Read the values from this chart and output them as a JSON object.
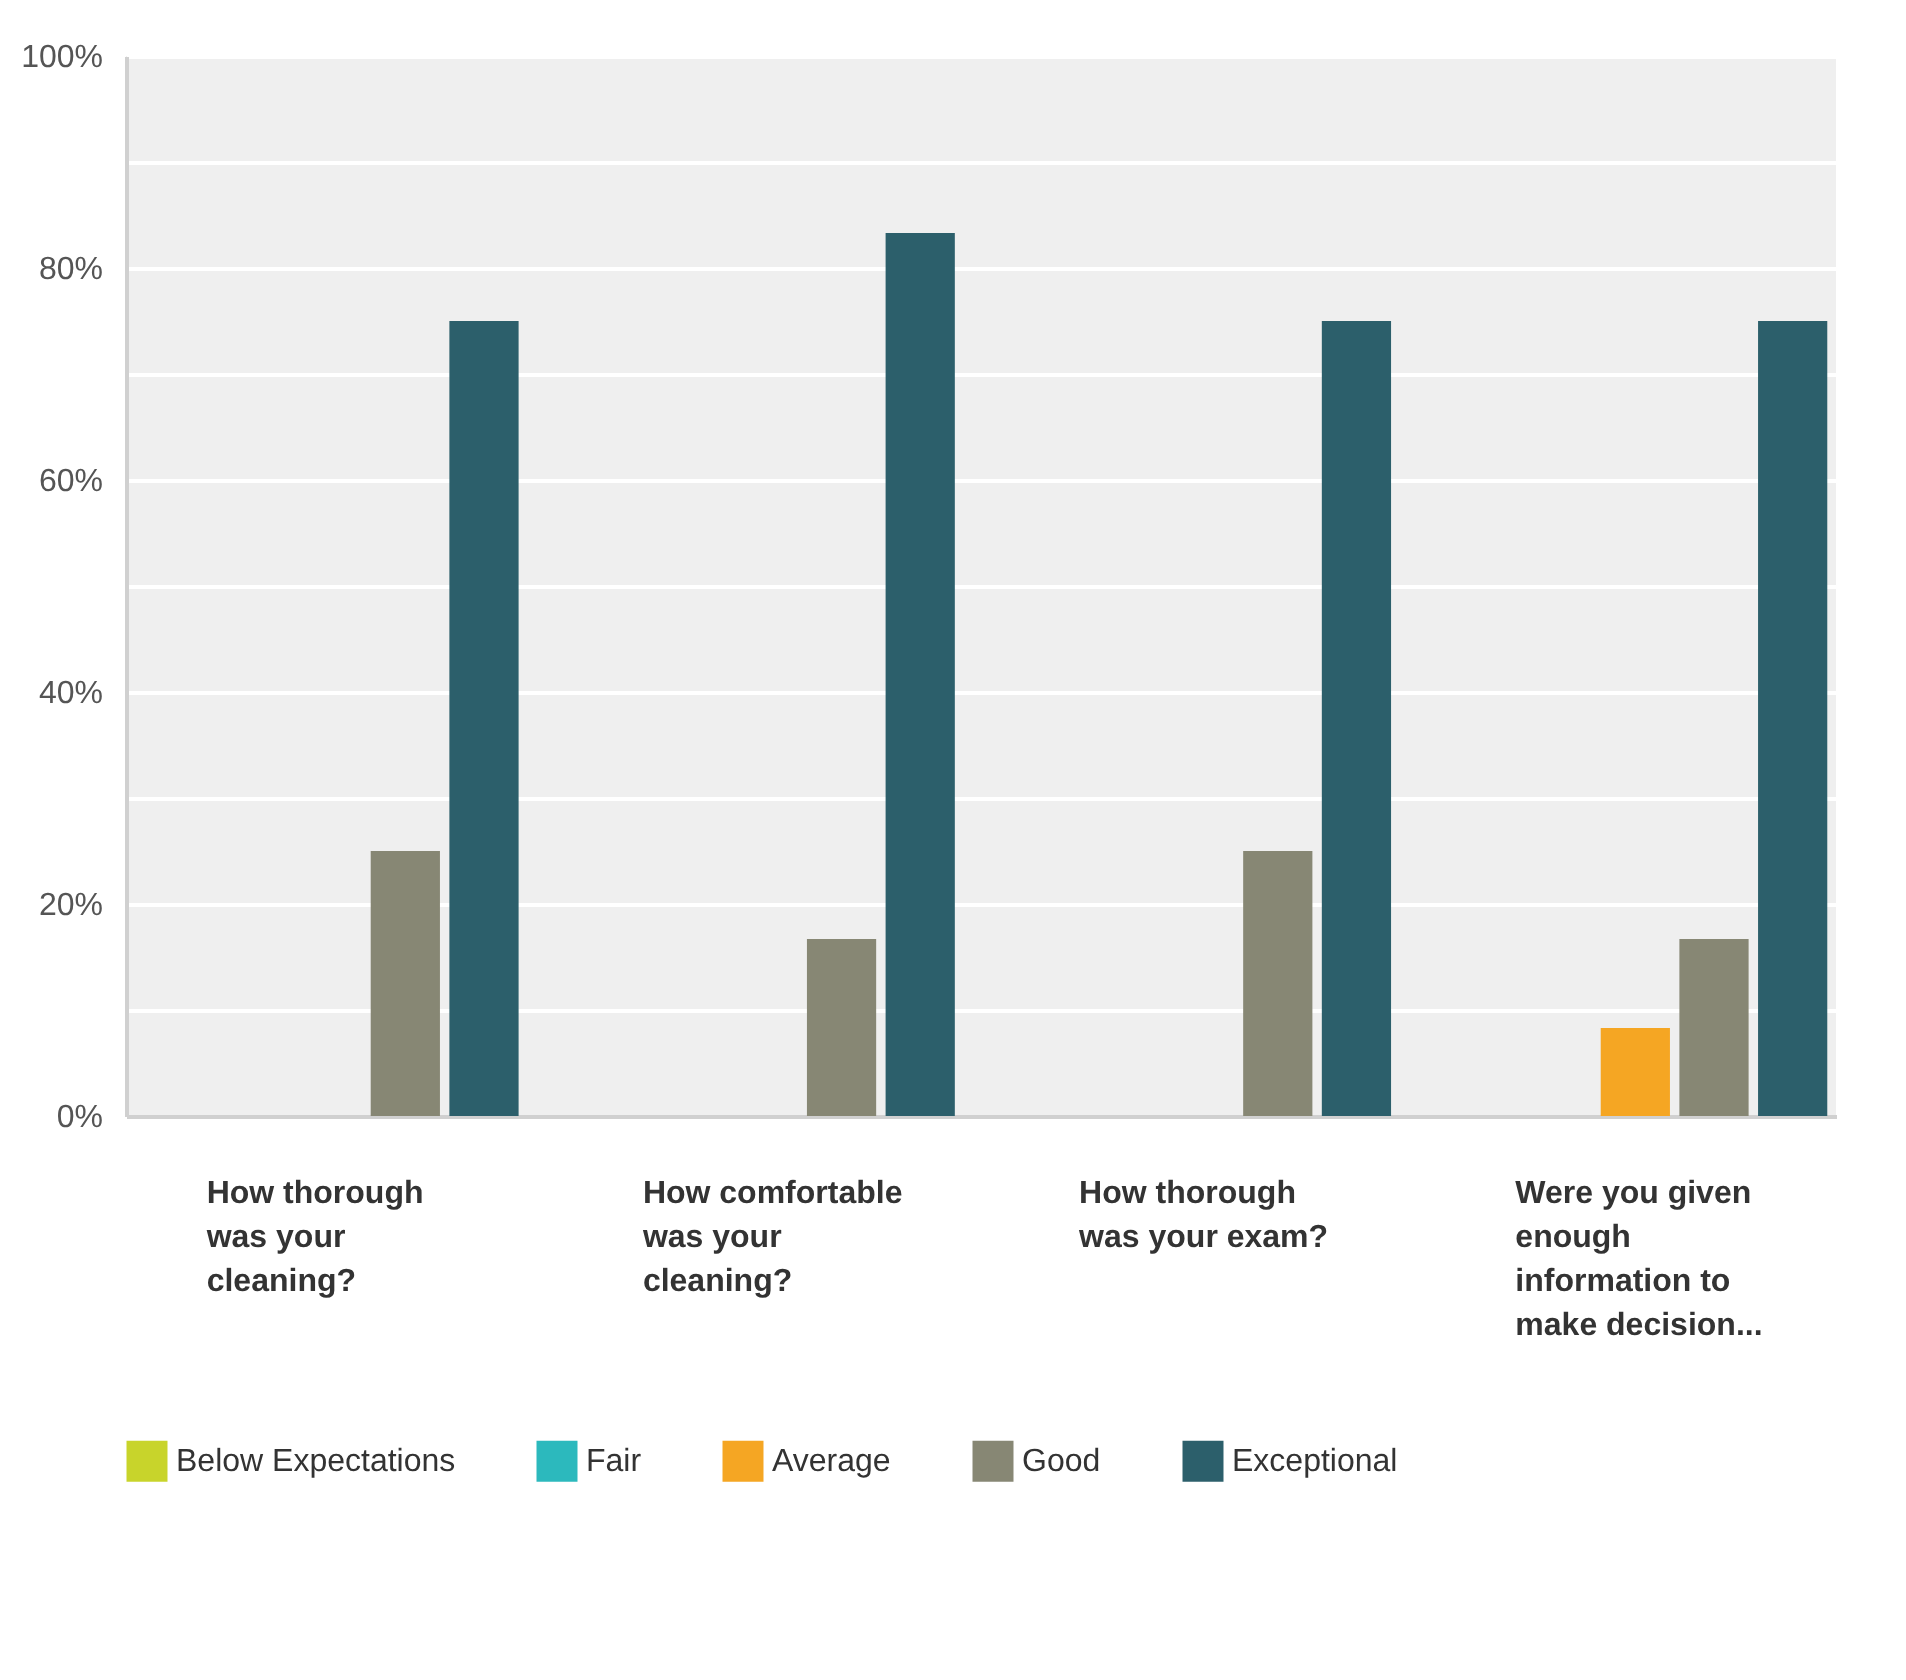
{
  "chart_data": {
    "type": "bar",
    "categories": [
      "How thorough was your cleaning?",
      "How comfortable was your cleaning?",
      "How thorough was your exam?",
      "Were you given enough information to make decision..."
    ],
    "series": [
      {
        "name": "Below Expectations",
        "color": "#c8d42b",
        "values": [
          0,
          0,
          0,
          0
        ]
      },
      {
        "name": "Fair",
        "color": "#2cb9bd",
        "values": [
          0,
          0,
          0,
          0
        ]
      },
      {
        "name": "Average",
        "color": "#f5a623",
        "values": [
          0,
          0,
          0,
          8.3
        ]
      },
      {
        "name": "Good",
        "color": "#878774",
        "values": [
          25,
          16.7,
          25,
          16.7
        ]
      },
      {
        "name": "Exceptional",
        "color": "#2c5f6b",
        "values": [
          75,
          83.3,
          75,
          75
        ]
      }
    ],
    "ylim": [
      0,
      100
    ],
    "yticks": [
      {
        "value": 0,
        "label": "0%"
      },
      {
        "value": 10,
        "label": null
      },
      {
        "value": 20,
        "label": "20%"
      },
      {
        "value": 30,
        "label": null
      },
      {
        "value": 40,
        "label": "40%"
      },
      {
        "value": 50,
        "label": null
      },
      {
        "value": 60,
        "label": "60%"
      },
      {
        "value": 70,
        "label": null
      },
      {
        "value": 80,
        "label": "80%"
      },
      {
        "value": 90,
        "label": null
      },
      {
        "value": 100,
        "label": "100%"
      }
    ],
    "grid": "y",
    "legend": "bottom"
  }
}
